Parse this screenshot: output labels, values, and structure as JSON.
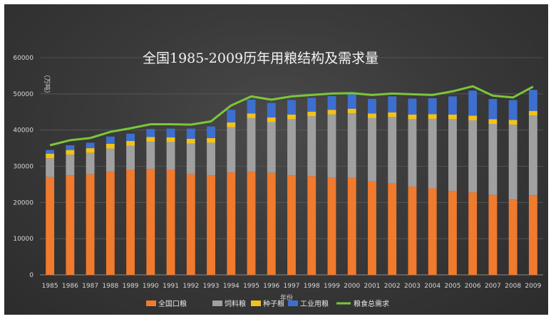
{
  "chart_data": {
    "type": "bar",
    "stacked": true,
    "title": "全国1985-2009历年用粮结构及需求量",
    "xlabel": "年份",
    "ylabel": "（万吨）",
    "ylim": [
      0,
      60000
    ],
    "yticks": [
      "0",
      "10000",
      "20000",
      "30000",
      "40000",
      "50000",
      "60000"
    ],
    "grid": true,
    "legend_position": "bottom",
    "categories": [
      "1985",
      "1986",
      "1987",
      "1988",
      "1989",
      "1990",
      "1991",
      "1992",
      "1993",
      "1994",
      "1995",
      "1996",
      "1997",
      "1998",
      "1999",
      "2000",
      "2001",
      "2002",
      "2003",
      "2004",
      "2005",
      "2006",
      "2007",
      "2008",
      "2009"
    ],
    "series": [
      {
        "name": "全国口粮",
        "type": "bar",
        "color": "#f07a2e",
        "values": [
          27000,
          27500,
          27800,
          28500,
          29000,
          29300,
          29000,
          27800,
          27500,
          28300,
          28500,
          28200,
          27500,
          27300,
          26800,
          26800,
          25800,
          25300,
          24400,
          23900,
          23200,
          22800,
          22100,
          20800,
          22000
        ]
      },
      {
        "name": "饲料粮",
        "type": "bar",
        "color": "#a0a0a0",
        "values": [
          5200,
          5700,
          5900,
          6400,
          6700,
          7500,
          7700,
          8500,
          9000,
          12500,
          14800,
          14000,
          15500,
          16500,
          17500,
          17800,
          17500,
          18300,
          18600,
          19200,
          19800,
          19900,
          19600,
          20700,
          22000
        ]
      },
      {
        "name": "种子粮",
        "type": "bar",
        "color": "#f2c21a",
        "values": [
          1300,
          1300,
          1300,
          1300,
          1300,
          1300,
          1300,
          1300,
          1300,
          1300,
          1300,
          1300,
          1300,
          1300,
          1300,
          1300,
          1300,
          1300,
          1300,
          1300,
          1300,
          1300,
          1300,
          1300,
          1300
        ]
      },
      {
        "name": "工业用粮",
        "type": "bar",
        "color": "#3d6fd0",
        "values": [
          1000,
          1300,
          1500,
          2000,
          2000,
          2200,
          2400,
          2800,
          3200,
          3500,
          3800,
          4000,
          4000,
          3800,
          3800,
          4000,
          4000,
          4400,
          4400,
          4400,
          5000,
          6900,
          5600,
          5500,
          5800
        ]
      },
      {
        "name": "粮食总需求",
        "type": "line",
        "color": "#7cc63a",
        "values": [
          35800,
          37200,
          37800,
          39500,
          40500,
          41600,
          41600,
          41500,
          42400,
          46800,
          49300,
          48400,
          49300,
          49700,
          50100,
          50200,
          49700,
          50100,
          49900,
          49700,
          50700,
          52100,
          49500,
          49000,
          52000
        ]
      }
    ]
  }
}
